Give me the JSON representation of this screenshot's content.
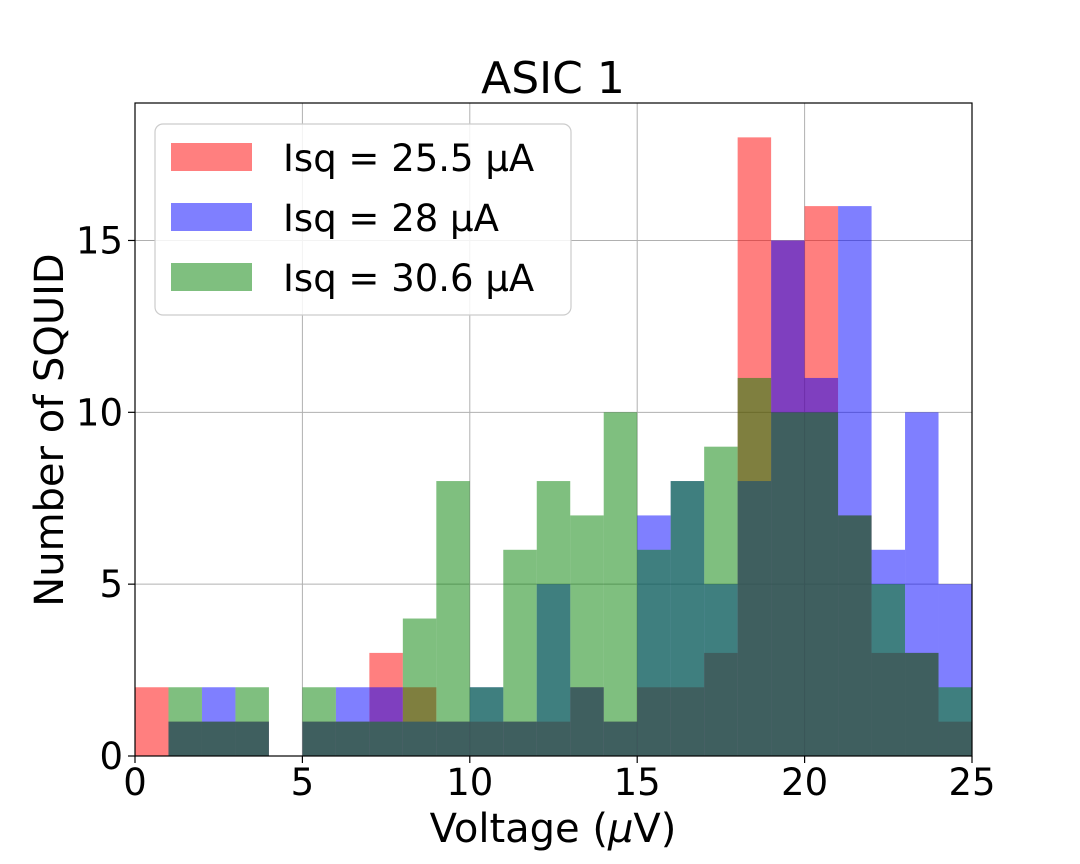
{
  "chart_data": {
    "type": "bar",
    "title": "ASIC 1",
    "xlabel": "Voltage (μV)",
    "ylabel": "Number of SQUID",
    "xlim": [
      0,
      25
    ],
    "ylim": [
      0,
      19
    ],
    "xticks": [
      0,
      5,
      10,
      15,
      20,
      25
    ],
    "yticks": [
      0,
      5,
      10,
      15
    ],
    "grid": true,
    "legend_position": "top-left",
    "bin_edges": [
      0,
      1,
      2,
      3,
      4,
      5,
      6,
      7,
      8,
      9,
      10,
      11,
      12,
      13,
      14,
      15,
      16,
      17,
      18,
      19,
      20,
      21,
      22,
      23,
      24,
      25
    ],
    "series": [
      {
        "name": "Isq = 25.5 μA",
        "color": "#ff0000",
        "values": [
          2,
          1,
          1,
          1,
          0,
          1,
          1,
          3,
          2,
          1,
          1,
          1,
          1,
          2,
          1,
          2,
          2,
          3,
          18,
          15,
          16,
          7,
          3,
          3,
          1
        ]
      },
      {
        "name": "Isq = 28 μA",
        "color": "#0000ff",
        "values": [
          0,
          1,
          2,
          1,
          0,
          1,
          2,
          2,
          1,
          1,
          2,
          1,
          5,
          2,
          1,
          7,
          8,
          5,
          8,
          15,
          11,
          16,
          6,
          10,
          5
        ]
      },
      {
        "name": "Isq = 30.6 μA",
        "color": "#008000",
        "values": [
          0,
          2,
          1,
          2,
          0,
          2,
          1,
          1,
          4,
          8,
          2,
          6,
          8,
          7,
          10,
          6,
          8,
          9,
          11,
          10,
          10,
          7,
          5,
          3,
          2
        ]
      }
    ]
  }
}
